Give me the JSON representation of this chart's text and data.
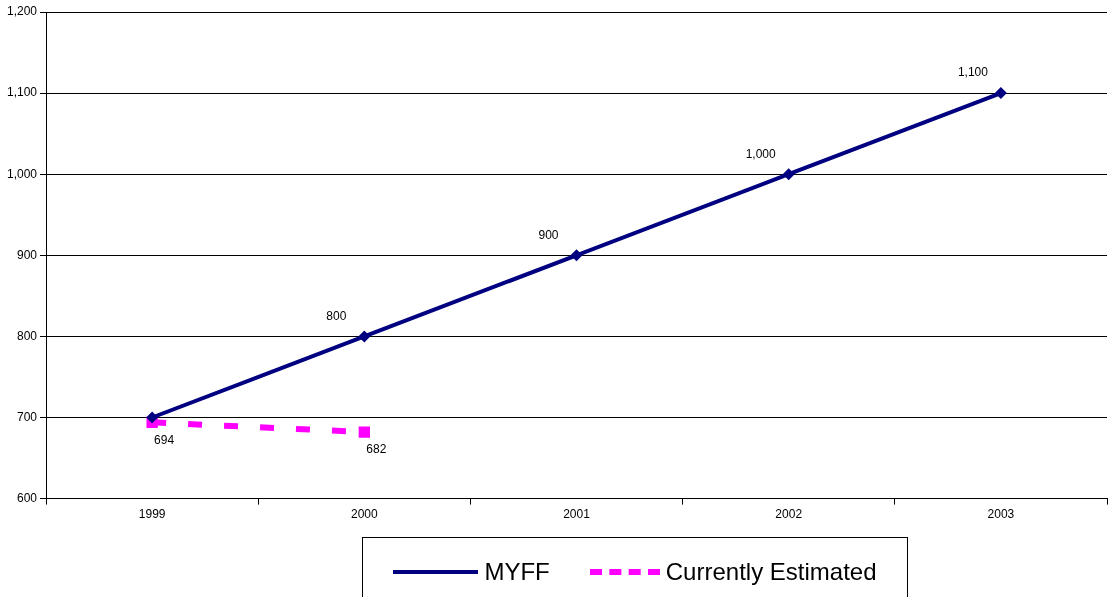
{
  "chart_data": {
    "type": "line",
    "categories": [
      "1999",
      "2000",
      "2001",
      "2002",
      "2003"
    ],
    "series": [
      {
        "name": "MYFF",
        "color": "#000080",
        "marker": "diamond",
        "line_style": "solid",
        "values": [
          700,
          800,
          900,
          1000,
          1100
        ],
        "value_labels": [
          null,
          "800",
          "900",
          "1,000",
          "1,100"
        ]
      },
      {
        "name": "Currently Estimated",
        "color": "#ff00ff",
        "marker": "square",
        "line_style": "dashed",
        "values": [
          694,
          682,
          null,
          null,
          null
        ],
        "value_labels": [
          "694",
          "682",
          null,
          null,
          null
        ]
      }
    ],
    "ylim": [
      600,
      1200
    ],
    "yticks": [
      {
        "value": 600,
        "label": "600"
      },
      {
        "value": 700,
        "label": "700"
      },
      {
        "value": 800,
        "label": "800"
      },
      {
        "value": 900,
        "label": "900"
      },
      {
        "value": 1000,
        "label": "1,000"
      },
      {
        "value": 1100,
        "label": "1,100"
      },
      {
        "value": 1200,
        "label": "1,200"
      }
    ],
    "grid": "y",
    "legend": "bottom"
  }
}
